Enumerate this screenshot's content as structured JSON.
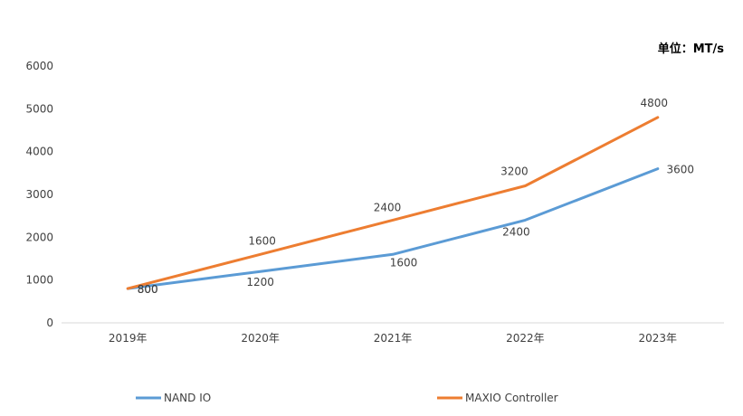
{
  "chart_data": {
    "type": "line",
    "unit_label": "单位：MT/s",
    "categories": [
      "2019年",
      "2020年",
      "2021年",
      "2022年",
      "2023年"
    ],
    "ylim": [
      0,
      6000
    ],
    "yticks": [
      "0",
      "1000",
      "2000",
      "3000",
      "4000",
      "5000",
      "6000"
    ],
    "series": [
      {
        "name": "NAND IO",
        "values": [
          800,
          1200,
          1600,
          2400,
          3600
        ],
        "color": "#5B9BD5"
      },
      {
        "name": "MAXIO Controller",
        "values": [
          800,
          1600,
          2400,
          3200,
          4800
        ],
        "color": "#ED7D31"
      }
    ],
    "legend_position": "bottom",
    "grid": false
  }
}
